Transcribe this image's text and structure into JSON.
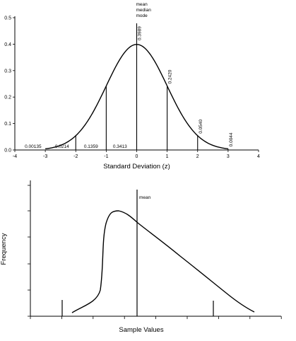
{
  "chart_data": [
    {
      "type": "line",
      "title": "",
      "xlabel": "Standard Deviation (z)",
      "ylabel": "",
      "xlim": [
        -4,
        4
      ],
      "ylim": [
        0,
        0.5
      ],
      "x_ticks": [
        "-4",
        "-3",
        "-2",
        "-1",
        "0",
        "1",
        "2",
        "3",
        "4"
      ],
      "y_ticks": [
        "0.0",
        "0.1",
        "0.2",
        "0.3",
        "0.4",
        "0.5"
      ],
      "grid": false,
      "series": [
        {
          "values_x": [
            -3,
            -2.5,
            -2,
            -1.5,
            -1,
            -0.5,
            0,
            0.5,
            1,
            1.5,
            2,
            2.5,
            3
          ],
          "values_y": [
            0.0044,
            0.0175,
            0.054,
            0.1295,
            0.242,
            0.3521,
            0.3989,
            0.3521,
            0.242,
            0.1295,
            0.054,
            0.0175,
            0.0044
          ]
        }
      ],
      "verticals": [
        -2,
        -1,
        0,
        1,
        2,
        3
      ],
      "center_label": [
        "mean",
        "median",
        "mode"
      ],
      "height_labels": [
        {
          "x": 0,
          "text": "0.3989"
        },
        {
          "x": 1,
          "text": "0.2420"
        },
        {
          "x": 2,
          "text": "0.0540"
        },
        {
          "x": 3,
          "text": "0.0044"
        }
      ],
      "area_labels": [
        {
          "x": -3.4,
          "text": "0.00135"
        },
        {
          "x": -2.45,
          "text": "0.0214"
        },
        {
          "x": -1.5,
          "text": "0.1359"
        },
        {
          "x": -0.55,
          "text": "0.3413"
        }
      ]
    },
    {
      "type": "line",
      "title": "",
      "xlabel": "Sample Values",
      "ylabel": "Frequency",
      "mean_label": "mean",
      "grid": false,
      "note": "right-skewed distribution sketch; axes unlabeled numerically"
    }
  ]
}
